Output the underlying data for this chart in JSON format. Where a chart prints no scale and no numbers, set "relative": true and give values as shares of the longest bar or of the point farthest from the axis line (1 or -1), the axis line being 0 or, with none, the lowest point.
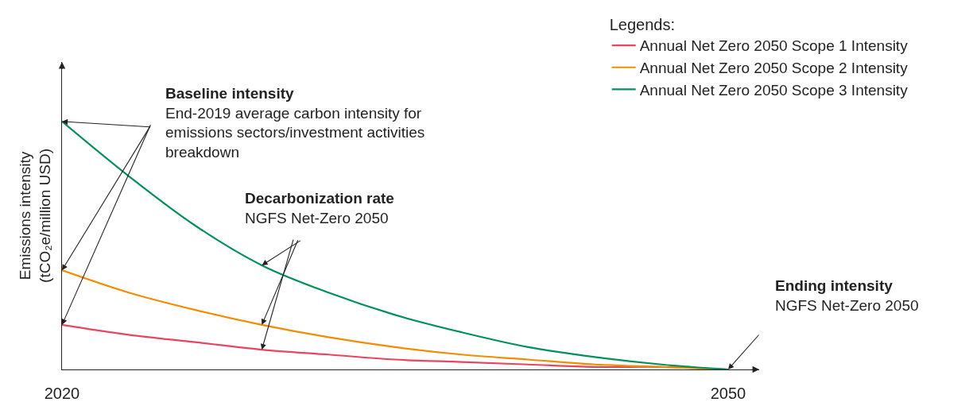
{
  "chart_data": {
    "type": "line",
    "relative": true,
    "ylabel": "Emissions intensity (tCO₂e/million USD)",
    "legend_title": "Legends:",
    "legend": "top right",
    "x": [
      2020,
      2023,
      2026,
      2029,
      2032,
      2035,
      2038,
      2041,
      2044,
      2047,
      2050
    ],
    "xlim": [
      2020,
      2051.4
    ],
    "xticks": [
      2020,
      2050
    ],
    "grid": false,
    "marker": "none",
    "line_style": "solid",
    "series": [
      {
        "name": "Annual Net Zero 2050 Scope 1 Intensity",
        "color": "#e8465f",
        "values": [
          0.18,
          0.14,
          0.11,
          0.08,
          0.06,
          0.04,
          0.03,
          0.02,
          0.01,
          0.01,
          0
        ]
      },
      {
        "name": "Annual Net Zero 2050 Scope 2 Intensity",
        "color": "#f28c00",
        "values": [
          0.4,
          0.31,
          0.24,
          0.18,
          0.13,
          0.09,
          0.06,
          0.04,
          0.02,
          0.01,
          0
        ]
      },
      {
        "name": "Annual Net Zero 2050 Scope 3 Intensity",
        "color": "#00915a",
        "values": [
          1,
          0.78,
          0.58,
          0.42,
          0.31,
          0.22,
          0.15,
          0.09,
          0.05,
          0.02,
          0
        ]
      }
    ],
    "annotations": [
      "Baseline intensity",
      "End-2019 average carbon intensity for emissions sectors/investment activities breakdown",
      "Decarbonization rate",
      "NGFS Net-Zero 2050",
      "Ending intensity",
      "NGFS Net-Zero 2050"
    ]
  }
}
